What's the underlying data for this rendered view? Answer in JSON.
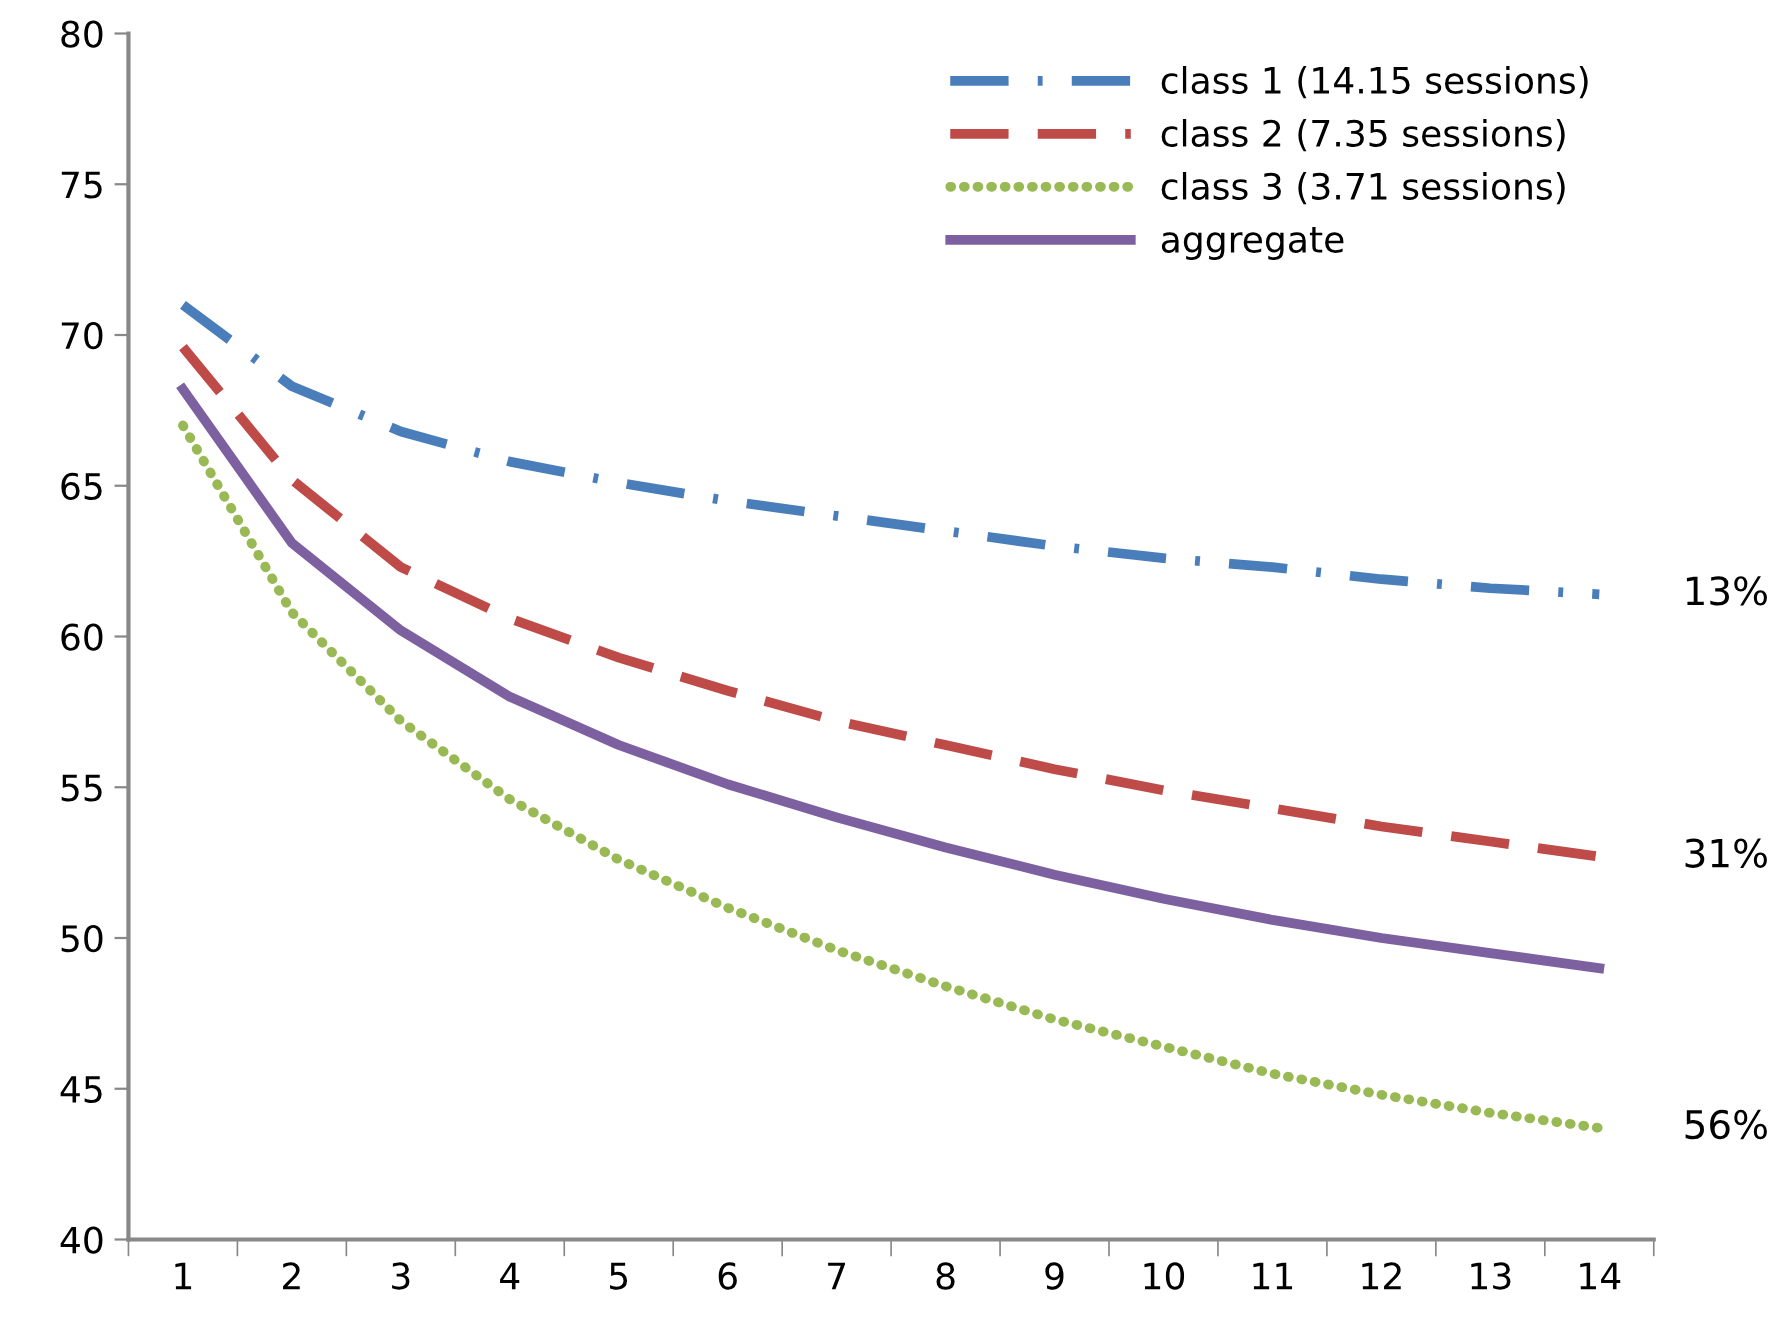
{
  "chart_data": {
    "type": "line",
    "categories": [
      "1",
      "2",
      "3",
      "4",
      "5",
      "6",
      "7",
      "8",
      "9",
      "10",
      "11",
      "12",
      "13",
      "14"
    ],
    "series": [
      {
        "name": "class 1 (14.15 sessions)",
        "color": "#4a7ebb",
        "line_style": "dashdot",
        "values": [
          71.0,
          68.3,
          66.8,
          65.8,
          65.1,
          64.5,
          64.0,
          63.5,
          63.0,
          62.6,
          62.3,
          61.9,
          61.6,
          61.4
        ]
      },
      {
        "name": "class 2 (7.35 sessions)",
        "color": "#be4b48",
        "line_style": "dashed",
        "values": [
          69.6,
          65.2,
          62.3,
          60.6,
          59.3,
          58.2,
          57.2,
          56.4,
          55.6,
          54.9,
          54.3,
          53.7,
          53.2,
          52.7
        ]
      },
      {
        "name": "class 3 (3.71 sessions)",
        "color": "#98b954",
        "line_style": "dotted",
        "values": [
          67.0,
          60.8,
          57.2,
          54.6,
          52.6,
          51.0,
          49.6,
          48.4,
          47.3,
          46.4,
          45.5,
          44.8,
          44.2,
          43.7
        ]
      },
      {
        "name": "aggregate",
        "color": "#7d60a0",
        "line_style": "solid",
        "values": [
          68.2,
          63.1,
          60.2,
          58.0,
          56.4,
          55.1,
          54.0,
          53.0,
          52.1,
          51.3,
          50.6,
          50.0,
          49.5,
          49.0
        ]
      }
    ],
    "ylim": [
      40,
      80
    ],
    "yticks": [
      40,
      45,
      50,
      55,
      60,
      65,
      70,
      75,
      80
    ],
    "grid": false,
    "legend": "top right",
    "marker": "none",
    "annotations": [
      {
        "text": "13%",
        "x": "14",
        "y": 61.4
      },
      {
        "text": "31%",
        "x": "14",
        "y": 52.7
      },
      {
        "text": "56%",
        "x": "14",
        "y": 43.7
      }
    ]
  }
}
